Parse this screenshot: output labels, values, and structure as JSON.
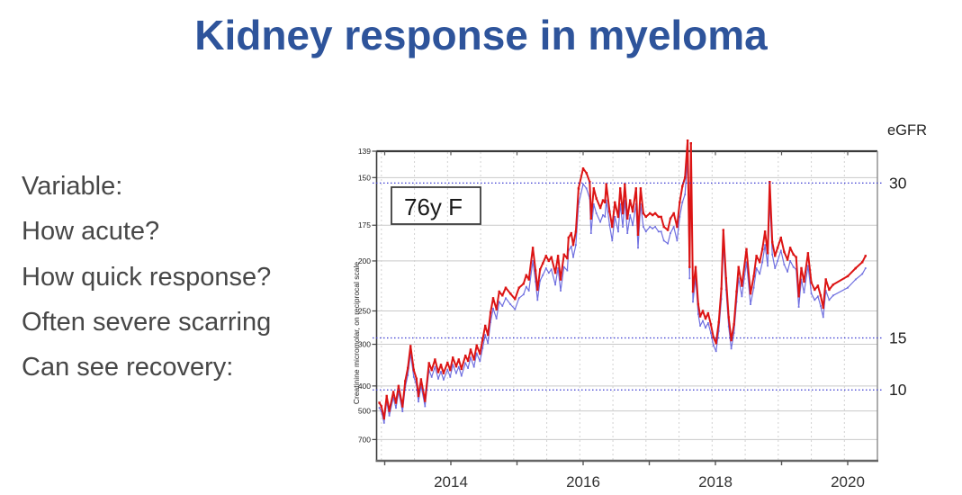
{
  "slide": {
    "title": "Kidney response in myeloma",
    "bullets": [
      "Variable:",
      "How acute?",
      "How quick response?",
      "Often severe scarring",
      "Can see recovery:"
    ]
  },
  "colors": {
    "title_blue": "#2e549b",
    "body_text": "#474747",
    "red_line": "#dc1414",
    "blue_line": "#7070e0",
    "egfr_line": "#3b3bd1",
    "gridline": "#c9c9c9",
    "dashed_gridline": "#d2d2d2",
    "axis_dark": "#3a3a3a",
    "axis_mid": "#666666",
    "tick_text": "#222222"
  },
  "chart_data": {
    "type": "line",
    "annotation": "76y F",
    "ylabel": "Creatinine micromolar, on reciprocal scale",
    "right_axis_label": "eGFR",
    "y_scale": "reciprocal",
    "y_domain": [
      139,
      820
    ],
    "y_ticks": [
      139,
      150,
      175,
      200,
      250,
      300,
      400,
      500,
      700
    ],
    "x_range_years": [
      2012.87,
      2020.45
    ],
    "x_ticks_all_years": [
      2013,
      2014,
      2015,
      2016,
      2017,
      2018,
      2019,
      2020
    ],
    "x_tick_labels": [
      {
        "year": 2014,
        "label": "2014"
      },
      {
        "year": 2016,
        "label": "2016"
      },
      {
        "year": 2018,
        "label": "2018"
      },
      {
        "year": 2020,
        "label": "2020"
      }
    ],
    "egfr_reference_lines": [
      {
        "label": "30",
        "creatinine_equivalent": 152.5
      },
      {
        "label": "15",
        "creatinine_equivalent": 289
      },
      {
        "label": "10",
        "creatinine_equivalent": 413
      }
    ],
    "series": [
      {
        "name": "creatinine-red",
        "color": "#dc1414",
        "stroke_width": 2.0,
        "marker": 2.4
      },
      {
        "name": "creatinine-blue",
        "color": "#7070e0",
        "stroke_width": 1.2,
        "marker": 1.8
      }
    ],
    "points_t_red_blue": [
      [
        2012.92,
        462,
        485
      ],
      [
        2012.95,
        478,
        502
      ],
      [
        2012.99,
        540,
        567
      ],
      [
        2013.03,
        435,
        457
      ],
      [
        2013.07,
        500,
        525
      ],
      [
        2013.13,
        420,
        441
      ],
      [
        2013.17,
        462,
        485
      ],
      [
        2013.21,
        400,
        420
      ],
      [
        2013.27,
        478,
        502
      ],
      [
        2013.31,
        385,
        404
      ],
      [
        2013.35,
        350,
        368
      ],
      [
        2013.39,
        303,
        318
      ],
      [
        2013.44,
        355,
        373
      ],
      [
        2013.48,
        378,
        397
      ],
      [
        2013.51,
        435,
        457
      ],
      [
        2013.55,
        380,
        399
      ],
      [
        2013.61,
        455,
        478
      ],
      [
        2013.67,
        338,
        355
      ],
      [
        2013.71,
        355,
        373
      ],
      [
        2013.76,
        330,
        347
      ],
      [
        2013.81,
        360,
        378
      ],
      [
        2013.85,
        342,
        359
      ],
      [
        2013.89,
        363,
        381
      ],
      [
        2013.95,
        337,
        354
      ],
      [
        2013.99,
        355,
        373
      ],
      [
        2014.03,
        326,
        342
      ],
      [
        2014.08,
        346,
        363
      ],
      [
        2014.12,
        330,
        347
      ],
      [
        2014.16,
        352,
        370
      ],
      [
        2014.22,
        322,
        338
      ],
      [
        2014.26,
        333,
        350
      ],
      [
        2014.3,
        310,
        326
      ],
      [
        2014.35,
        330,
        347
      ],
      [
        2014.39,
        302,
        317
      ],
      [
        2014.44,
        318,
        334
      ],
      [
        2014.48,
        292,
        307
      ],
      [
        2014.52,
        270,
        284
      ],
      [
        2014.56,
        284,
        298
      ],
      [
        2014.6,
        252,
        265
      ],
      [
        2014.64,
        235,
        247
      ],
      [
        2014.69,
        248,
        260
      ],
      [
        2014.73,
        228,
        239
      ],
      [
        2014.78,
        232,
        244
      ],
      [
        2014.83,
        224,
        235
      ],
      [
        2014.9,
        230,
        242
      ],
      [
        2014.97,
        236,
        248
      ],
      [
        2015.03,
        224,
        235
      ],
      [
        2015.1,
        220,
        231
      ],
      [
        2015.14,
        212,
        223
      ],
      [
        2015.18,
        216,
        227
      ],
      [
        2015.24,
        190,
        200
      ],
      [
        2015.28,
        208,
        218
      ],
      [
        2015.31,
        226,
        237
      ],
      [
        2015.35,
        207,
        217
      ],
      [
        2015.39,
        202,
        212
      ],
      [
        2015.44,
        196,
        206
      ],
      [
        2015.48,
        200,
        210
      ],
      [
        2015.52,
        197,
        207
      ],
      [
        2015.58,
        210,
        221
      ],
      [
        2015.62,
        196,
        206
      ],
      [
        2015.66,
        216,
        227
      ],
      [
        2015.71,
        195,
        205
      ],
      [
        2015.76,
        198,
        208
      ],
      [
        2015.78,
        183,
        192
      ],
      [
        2015.82,
        180,
        189
      ],
      [
        2015.85,
        188,
        197
      ],
      [
        2015.89,
        179,
        188
      ],
      [
        2015.93,
        155,
        163
      ],
      [
        2016.0,
        146,
        153
      ],
      [
        2016.05,
        148,
        155
      ],
      [
        2016.1,
        152,
        160
      ],
      [
        2016.12,
        171,
        180
      ],
      [
        2016.16,
        155,
        163
      ],
      [
        2016.2,
        160,
        168
      ],
      [
        2016.26,
        165,
        173
      ],
      [
        2016.3,
        161,
        169
      ],
      [
        2016.33,
        162,
        170
      ],
      [
        2016.35,
        153,
        161
      ],
      [
        2016.4,
        167,
        175
      ],
      [
        2016.44,
        176,
        185
      ],
      [
        2016.48,
        162,
        170
      ],
      [
        2016.53,
        170,
        179
      ],
      [
        2016.56,
        155,
        163
      ],
      [
        2016.6,
        168,
        176
      ],
      [
        2016.63,
        153,
        161
      ],
      [
        2016.67,
        171,
        180
      ],
      [
        2016.71,
        161,
        169
      ],
      [
        2016.75,
        167,
        175
      ],
      [
        2016.8,
        155,
        163
      ],
      [
        2016.83,
        181,
        190
      ],
      [
        2016.87,
        155,
        163
      ],
      [
        2016.91,
        168,
        176
      ],
      [
        2016.95,
        170,
        179
      ],
      [
        2017.01,
        168,
        176
      ],
      [
        2017.05,
        169,
        177
      ],
      [
        2017.09,
        168,
        176
      ],
      [
        2017.14,
        170,
        179
      ],
      [
        2017.18,
        170,
        179
      ],
      [
        2017.22,
        176,
        185
      ],
      [
        2017.28,
        178,
        187
      ],
      [
        2017.32,
        171,
        180
      ],
      [
        2017.37,
        168,
        176
      ],
      [
        2017.42,
        176,
        185
      ],
      [
        2017.46,
        162,
        170
      ],
      [
        2017.5,
        154,
        162
      ],
      [
        2017.54,
        150,
        158
      ],
      [
        2017.58,
        135,
        141
      ],
      [
        2017.61,
        205,
        215
      ],
      [
        2017.63,
        136,
        143
      ],
      [
        2017.66,
        228,
        239
      ],
      [
        2017.7,
        205,
        215
      ],
      [
        2017.74,
        242,
        254
      ],
      [
        2017.77,
        257,
        270
      ],
      [
        2017.81,
        250,
        263
      ],
      [
        2017.85,
        260,
        273
      ],
      [
        2017.89,
        253,
        266
      ],
      [
        2017.93,
        268,
        281
      ],
      [
        2017.97,
        288,
        302
      ],
      [
        2018.01,
        298,
        313
      ],
      [
        2018.05,
        265,
        278
      ],
      [
        2018.09,
        225,
        236
      ],
      [
        2018.12,
        178,
        187
      ],
      [
        2018.16,
        215,
        226
      ],
      [
        2018.2,
        258,
        271
      ],
      [
        2018.24,
        293,
        308
      ],
      [
        2018.28,
        268,
        281
      ],
      [
        2018.32,
        228,
        239
      ],
      [
        2018.35,
        205,
        215
      ],
      [
        2018.4,
        222,
        233
      ],
      [
        2018.47,
        191,
        201
      ],
      [
        2018.53,
        230,
        242
      ],
      [
        2018.58,
        213,
        224
      ],
      [
        2018.62,
        196,
        206
      ],
      [
        2018.67,
        201,
        211
      ],
      [
        2018.71,
        191,
        201
      ],
      [
        2018.75,
        179,
        188
      ],
      [
        2018.79,
        194,
        204
      ],
      [
        2018.82,
        152,
        160
      ],
      [
        2018.86,
        186,
        195
      ],
      [
        2018.9,
        196,
        206
      ],
      [
        2018.94,
        190,
        200
      ],
      [
        2018.99,
        183,
        192
      ],
      [
        2019.04,
        193,
        203
      ],
      [
        2019.09,
        199,
        209
      ],
      [
        2019.13,
        190,
        200
      ],
      [
        2019.18,
        195,
        205
      ],
      [
        2019.22,
        197,
        207
      ],
      [
        2019.26,
        233,
        245
      ],
      [
        2019.3,
        206,
        216
      ],
      [
        2019.34,
        218,
        229
      ],
      [
        2019.4,
        194,
        204
      ],
      [
        2019.45,
        219,
        230
      ],
      [
        2019.5,
        226,
        237
      ],
      [
        2019.55,
        222,
        233
      ],
      [
        2019.59,
        232,
        244
      ],
      [
        2019.63,
        246,
        258
      ],
      [
        2019.67,
        216,
        227
      ],
      [
        2019.72,
        226,
        237
      ],
      [
        2019.78,
        221,
        232
      ],
      [
        2020.0,
        213,
        224
      ],
      [
        2020.12,
        206,
        216
      ],
      [
        2020.22,
        201,
        211
      ],
      [
        2020.27,
        196,
        206
      ]
    ]
  }
}
